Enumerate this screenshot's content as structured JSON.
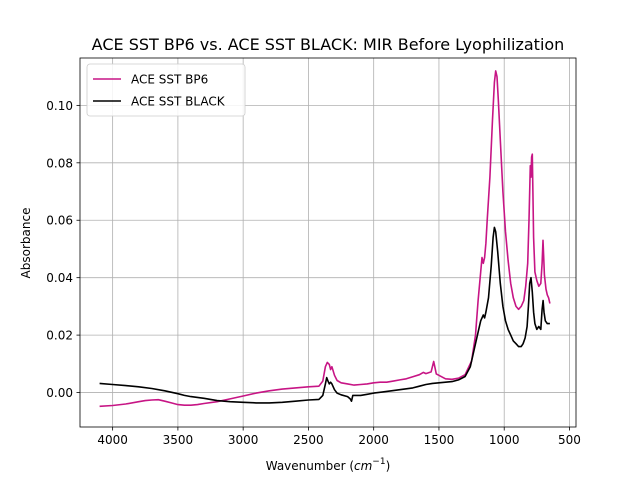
{
  "chart_data": {
    "type": "line",
    "title": "ACE SST BP6 vs. ACE SST BLACK: MIR Before Lyophilization",
    "xlabel_prefix": "Wavenumber (",
    "xlabel_math": "cm",
    "xlabel_sup": "−1",
    "xlabel_suffix": ")",
    "ylabel": "Absorbance",
    "x_inverted": true,
    "xlim": [
      4250,
      450
    ],
    "ylim": [
      -0.012,
      0.1165
    ],
    "x_ticks": [
      4000,
      3500,
      3000,
      2500,
      2000,
      1500,
      1000,
      500
    ],
    "x_tick_labels": [
      "4000",
      "3500",
      "3000",
      "2500",
      "2000",
      "1500",
      "1000",
      "500"
    ],
    "y_ticks": [
      0.0,
      0.02,
      0.04,
      0.06,
      0.08,
      0.1
    ],
    "y_tick_labels": [
      "0.00",
      "0.02",
      "0.04",
      "0.06",
      "0.08",
      "0.10"
    ],
    "grid": true,
    "legend_position": "top-left",
    "series": [
      {
        "name": "ACE SST BP6",
        "color": "#c71585",
        "points": [
          [
            4100,
            -0.0048
          ],
          [
            4000,
            -0.0045
          ],
          [
            3900,
            -0.004
          ],
          [
            3800,
            -0.0032
          ],
          [
            3750,
            -0.0028
          ],
          [
            3700,
            -0.0026
          ],
          [
            3650,
            -0.0025
          ],
          [
            3600,
            -0.003
          ],
          [
            3550,
            -0.0036
          ],
          [
            3500,
            -0.0042
          ],
          [
            3450,
            -0.0044
          ],
          [
            3400,
            -0.0044
          ],
          [
            3350,
            -0.0042
          ],
          [
            3300,
            -0.0038
          ],
          [
            3200,
            -0.0032
          ],
          [
            3100,
            -0.0022
          ],
          [
            3000,
            -0.0012
          ],
          [
            2900,
            -0.0002
          ],
          [
            2800,
            0.0006
          ],
          [
            2700,
            0.0012
          ],
          [
            2600,
            0.0016
          ],
          [
            2500,
            0.002
          ],
          [
            2420,
            0.0022
          ],
          [
            2390,
            0.004
          ],
          [
            2370,
            0.009
          ],
          [
            2355,
            0.0105
          ],
          [
            2340,
            0.0098
          ],
          [
            2330,
            0.008
          ],
          [
            2320,
            0.009
          ],
          [
            2300,
            0.006
          ],
          [
            2280,
            0.0042
          ],
          [
            2250,
            0.0034
          ],
          [
            2200,
            0.003
          ],
          [
            2150,
            0.0026
          ],
          [
            2100,
            0.0028
          ],
          [
            2050,
            0.003
          ],
          [
            2000,
            0.0034
          ],
          [
            1950,
            0.0036
          ],
          [
            1900,
            0.0036
          ],
          [
            1850,
            0.004
          ],
          [
            1800,
            0.0044
          ],
          [
            1750,
            0.0048
          ],
          [
            1700,
            0.0055
          ],
          [
            1650,
            0.0062
          ],
          [
            1620,
            0.007
          ],
          [
            1600,
            0.0066
          ],
          [
            1560,
            0.0072
          ],
          [
            1540,
            0.0108
          ],
          [
            1520,
            0.0065
          ],
          [
            1500,
            0.006
          ],
          [
            1450,
            0.0048
          ],
          [
            1400,
            0.0046
          ],
          [
            1350,
            0.005
          ],
          [
            1300,
            0.0062
          ],
          [
            1250,
            0.011
          ],
          [
            1220,
            0.02
          ],
          [
            1200,
            0.032
          ],
          [
            1180,
            0.042
          ],
          [
            1170,
            0.047
          ],
          [
            1160,
            0.045
          ],
          [
            1150,
            0.047
          ],
          [
            1140,
            0.052
          ],
          [
            1130,
            0.06
          ],
          [
            1110,
            0.075
          ],
          [
            1090,
            0.095
          ],
          [
            1075,
            0.108
          ],
          [
            1065,
            0.112
          ],
          [
            1055,
            0.11
          ],
          [
            1045,
            0.102
          ],
          [
            1030,
            0.088
          ],
          [
            1010,
            0.07
          ],
          [
            990,
            0.056
          ],
          [
            970,
            0.046
          ],
          [
            950,
            0.038
          ],
          [
            930,
            0.033
          ],
          [
            910,
            0.03
          ],
          [
            890,
            0.029
          ],
          [
            870,
            0.03
          ],
          [
            850,
            0.032
          ],
          [
            835,
            0.037
          ],
          [
            820,
            0.045
          ],
          [
            810,
            0.06
          ],
          [
            800,
            0.079
          ],
          [
            795,
            0.075
          ],
          [
            790,
            0.082
          ],
          [
            785,
            0.083
          ],
          [
            780,
            0.07
          ],
          [
            775,
            0.054
          ],
          [
            765,
            0.042
          ],
          [
            750,
            0.039
          ],
          [
            735,
            0.037
          ],
          [
            720,
            0.038
          ],
          [
            710,
            0.045
          ],
          [
            703,
            0.053
          ],
          [
            698,
            0.048
          ],
          [
            692,
            0.041
          ],
          [
            680,
            0.036
          ],
          [
            670,
            0.034
          ],
          [
            660,
            0.033
          ],
          [
            650,
            0.031
          ]
        ]
      },
      {
        "name": "ACE SST BLACK",
        "color": "#000000",
        "points": [
          [
            4100,
            0.0032
          ],
          [
            4000,
            0.0028
          ],
          [
            3900,
            0.0024
          ],
          [
            3800,
            0.002
          ],
          [
            3700,
            0.0014
          ],
          [
            3600,
            0.0006
          ],
          [
            3500,
            -0.0004
          ],
          [
            3450,
            -0.001
          ],
          [
            3400,
            -0.0014
          ],
          [
            3300,
            -0.002
          ],
          [
            3200,
            -0.0028
          ],
          [
            3100,
            -0.0032
          ],
          [
            3000,
            -0.0034
          ],
          [
            2900,
            -0.0036
          ],
          [
            2800,
            -0.0036
          ],
          [
            2700,
            -0.0034
          ],
          [
            2600,
            -0.003
          ],
          [
            2500,
            -0.0026
          ],
          [
            2420,
            -0.0024
          ],
          [
            2390,
            -0.001
          ],
          [
            2370,
            0.003
          ],
          [
            2360,
            0.0052
          ],
          [
            2350,
            0.004
          ],
          [
            2340,
            0.003
          ],
          [
            2330,
            0.0036
          ],
          [
            2320,
            0.003
          ],
          [
            2300,
            0.001
          ],
          [
            2280,
            -0.0002
          ],
          [
            2250,
            -0.0008
          ],
          [
            2200,
            -0.0014
          ],
          [
            2180,
            -0.0022
          ],
          [
            2170,
            -0.003
          ],
          [
            2160,
            -0.001
          ],
          [
            2100,
            -0.001
          ],
          [
            2050,
            -0.0006
          ],
          [
            2000,
            -0.0002
          ],
          [
            1900,
            0.0004
          ],
          [
            1800,
            0.001
          ],
          [
            1700,
            0.0016
          ],
          [
            1650,
            0.0022
          ],
          [
            1600,
            0.0028
          ],
          [
            1550,
            0.0032
          ],
          [
            1500,
            0.0034
          ],
          [
            1450,
            0.0036
          ],
          [
            1400,
            0.0038
          ],
          [
            1350,
            0.0044
          ],
          [
            1300,
            0.0056
          ],
          [
            1260,
            0.009
          ],
          [
            1230,
            0.015
          ],
          [
            1200,
            0.021
          ],
          [
            1180,
            0.025
          ],
          [
            1160,
            0.027
          ],
          [
            1150,
            0.026
          ],
          [
            1140,
            0.028
          ],
          [
            1120,
            0.033
          ],
          [
            1100,
            0.044
          ],
          [
            1085,
            0.054
          ],
          [
            1075,
            0.0575
          ],
          [
            1065,
            0.056
          ],
          [
            1050,
            0.049
          ],
          [
            1030,
            0.038
          ],
          [
            1010,
            0.03
          ],
          [
            990,
            0.025
          ],
          [
            970,
            0.022
          ],
          [
            950,
            0.02
          ],
          [
            930,
            0.018
          ],
          [
            910,
            0.017
          ],
          [
            890,
            0.016
          ],
          [
            870,
            0.016
          ],
          [
            855,
            0.017
          ],
          [
            840,
            0.019
          ],
          [
            825,
            0.023
          ],
          [
            815,
            0.03
          ],
          [
            805,
            0.038
          ],
          [
            795,
            0.04
          ],
          [
            785,
            0.035
          ],
          [
            775,
            0.028
          ],
          [
            765,
            0.024
          ],
          [
            750,
            0.022
          ],
          [
            735,
            0.023
          ],
          [
            720,
            0.022
          ],
          [
            710,
            0.029
          ],
          [
            702,
            0.032
          ],
          [
            695,
            0.028
          ],
          [
            685,
            0.025
          ],
          [
            670,
            0.024
          ],
          [
            660,
            0.024
          ],
          [
            650,
            0.024
          ]
        ]
      }
    ]
  }
}
